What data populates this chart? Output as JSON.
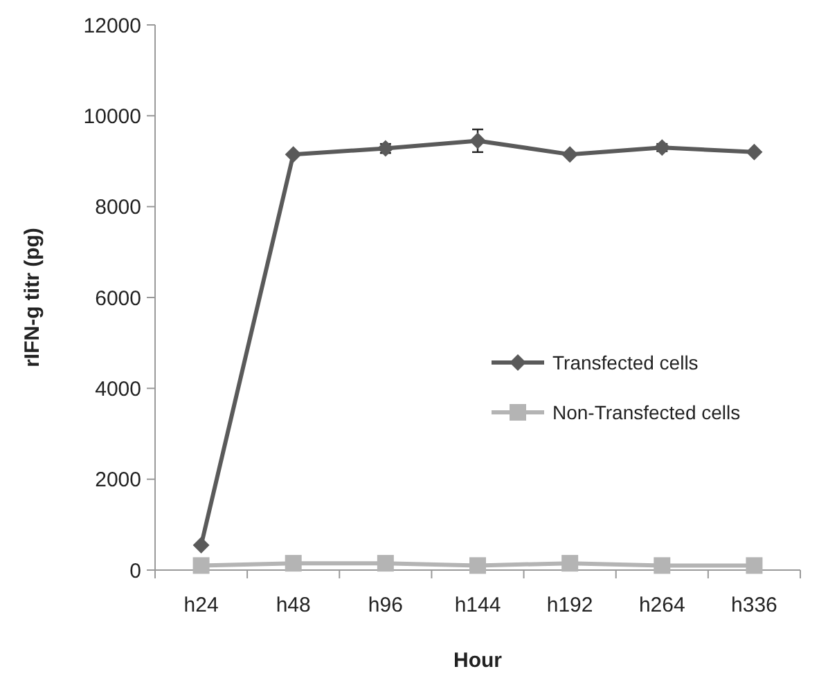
{
  "chart_data": {
    "type": "line",
    "xlabel": "Hour",
    "ylabel": "rIFN-g titr (pg)",
    "categories": [
      "h24",
      "h48",
      "h96",
      "h144",
      "h192",
      "h264",
      "h336"
    ],
    "series": [
      {
        "name": "Transfected cells",
        "color": "#5a5a5a",
        "marker": "diamond",
        "values": [
          550,
          9150,
          9280,
          9450,
          9150,
          9300,
          9200
        ],
        "errors": [
          null,
          null,
          100,
          250,
          null,
          80,
          null
        ]
      },
      {
        "name": "Non-Transfected cells",
        "color": "#b4b4b4",
        "marker": "square",
        "values": [
          100,
          150,
          150,
          100,
          150,
          100,
          100
        ]
      }
    ],
    "ylim": [
      0,
      12000
    ],
    "yticks": [
      0,
      2000,
      4000,
      6000,
      8000,
      10000,
      12000
    ],
    "grid": false,
    "legend": "right"
  }
}
